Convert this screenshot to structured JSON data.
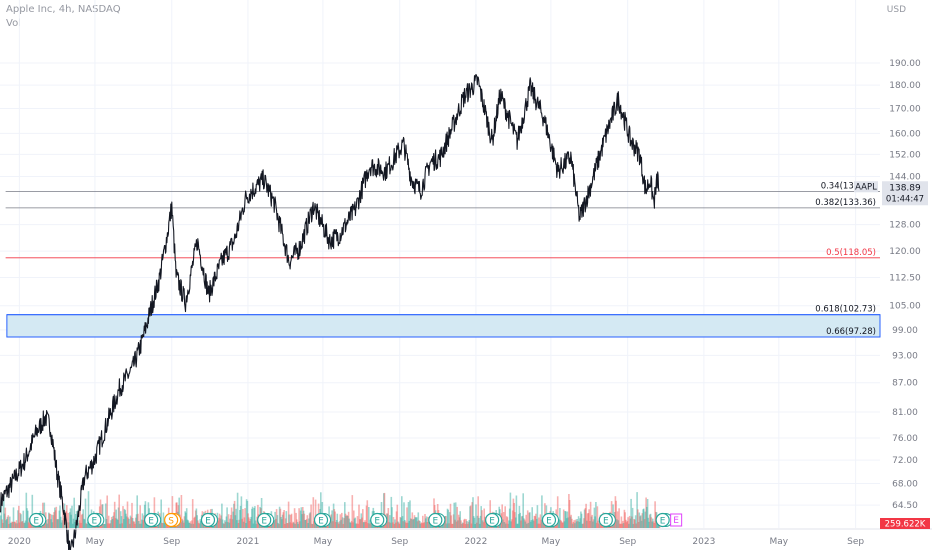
{
  "header": {
    "title": "Apple Inc, 4h, NASDAQ",
    "indicator": "Vol",
    "currency": "USD"
  },
  "colors": {
    "price": "#131722",
    "grid": "#f0f3fa",
    "fib_gray": "#787b86",
    "fib_red": "#f23645",
    "fib_blue": "#2962ff",
    "zone_fill": "#d4e9f3",
    "vol_up": "#26a69a",
    "vol_down": "#ef5350",
    "earnings": "#26a69a",
    "split": "#ff9800",
    "earnings_future": "#e040fb",
    "last_price_bg": "#e0e3eb",
    "volume_label_bg": "#f23645"
  },
  "chart_data": {
    "type": "line",
    "symbol": "AAPL",
    "interval": "4h",
    "exchange": "NASDAQ",
    "y_scale": "log",
    "ylim": [
      61,
      201
    ],
    "xlim": [
      "2019-12-01",
      "2023-10-10"
    ],
    "x_tick_labels": [
      {
        "date": "2020-01-01",
        "label": "2020"
      },
      {
        "date": "2020-05-01",
        "label": "May"
      },
      {
        "date": "2020-09-01",
        "label": "Sep"
      },
      {
        "date": "2021-01-01",
        "label": "2021"
      },
      {
        "date": "2021-05-01",
        "label": "May"
      },
      {
        "date": "2021-09-01",
        "label": "Sep"
      },
      {
        "date": "2022-01-01",
        "label": "2022"
      },
      {
        "date": "2022-05-01",
        "label": "May"
      },
      {
        "date": "2022-09-01",
        "label": "Sep"
      },
      {
        "date": "2023-01-01",
        "label": "2023"
      },
      {
        "date": "2023-05-01",
        "label": "May"
      },
      {
        "date": "2023-09-01",
        "label": "Sep"
      }
    ],
    "y_tick_labels": [
      "190.00",
      "180.00",
      "170.00",
      "160.00",
      "152.00",
      "144.00",
      "128.00",
      "120.00",
      "112.50",
      "105.00",
      "99.00",
      "93.00",
      "87.00",
      "81.00",
      "76.00",
      "72.00",
      "68.00",
      "64.50"
    ],
    "price_series": {
      "name": "AAPL",
      "points": [
        [
          "2019-12-02",
          65
        ],
        [
          "2019-12-20",
          68
        ],
        [
          "2020-01-10",
          72
        ],
        [
          "2020-01-28",
          77
        ],
        [
          "2020-02-12",
          80
        ],
        [
          "2020-02-20",
          78
        ],
        [
          "2020-03-01",
          70
        ],
        [
          "2020-03-12",
          64
        ],
        [
          "2020-03-23",
          57
        ],
        [
          "2020-04-01",
          61
        ],
        [
          "2020-04-14",
          69
        ],
        [
          "2020-04-30",
          72
        ],
        [
          "2020-05-18",
          78
        ],
        [
          "2020-06-10",
          86
        ],
        [
          "2020-06-30",
          90
        ],
        [
          "2020-07-15",
          96
        ],
        [
          "2020-07-31",
          105
        ],
        [
          "2020-08-12",
          112
        ],
        [
          "2020-08-25",
          125
        ],
        [
          "2020-09-01",
          134
        ],
        [
          "2020-09-08",
          113
        ],
        [
          "2020-09-23",
          106
        ],
        [
          "2020-10-12",
          123
        ],
        [
          "2020-10-30",
          108
        ],
        [
          "2020-11-20",
          117
        ],
        [
          "2020-12-10",
          123
        ],
        [
          "2020-12-29",
          137
        ],
        [
          "2021-01-26",
          143
        ],
        [
          "2021-02-12",
          135
        ],
        [
          "2021-03-08",
          117
        ],
        [
          "2021-03-25",
          121
        ],
        [
          "2021-04-16",
          134
        ],
        [
          "2021-05-12",
          123
        ],
        [
          "2021-05-28",
          125
        ],
        [
          "2021-06-22",
          133
        ],
        [
          "2021-07-15",
          148
        ],
        [
          "2021-08-10",
          146
        ],
        [
          "2021-09-07",
          156
        ],
        [
          "2021-09-20",
          143
        ],
        [
          "2021-10-04",
          139
        ],
        [
          "2021-10-20",
          149
        ],
        [
          "2021-11-05",
          151
        ],
        [
          "2021-11-22",
          161
        ],
        [
          "2021-12-13",
          175
        ],
        [
          "2022-01-04",
          182
        ],
        [
          "2022-01-27",
          157
        ],
        [
          "2022-02-09",
          176
        ],
        [
          "2022-03-08",
          157
        ],
        [
          "2022-03-29",
          179
        ],
        [
          "2022-04-20",
          166
        ],
        [
          "2022-05-12",
          146
        ],
        [
          "2022-06-02",
          151
        ],
        [
          "2022-06-16",
          130
        ],
        [
          "2022-07-01",
          139
        ],
        [
          "2022-07-29",
          160
        ],
        [
          "2022-08-17",
          174
        ],
        [
          "2022-09-06",
          157
        ],
        [
          "2022-09-20",
          152
        ],
        [
          "2022-09-30",
          139
        ],
        [
          "2022-10-07",
          143
        ],
        [
          "2022-10-13",
          135
        ],
        [
          "2022-10-19",
          144
        ],
        [
          "2022-10-21",
          138.89
        ]
      ]
    },
    "last_price": {
      "symbol": "AAPL",
      "value": "138.89",
      "countdown": "01:44:47"
    },
    "volume_label": "259.622K",
    "fib_levels": [
      {
        "label": "0.34(138.81)",
        "value": 138.81,
        "color": "#787b86"
      },
      {
        "label": "0.382(133.36)",
        "value": 133.36,
        "color": "#787b86"
      },
      {
        "label": "0.5(118.05)",
        "value": 118.05,
        "color": "#f23645"
      },
      {
        "label": "0.618(102.73)",
        "value": 102.73,
        "color": "#2962ff"
      },
      {
        "label": "0.66(97.28)",
        "value": 97.28,
        "color": "#2962ff"
      }
    ],
    "zone": {
      "from": 97.28,
      "to": 102.73
    },
    "event_markers": [
      {
        "date": "2020-01-28",
        "label": "E"
      },
      {
        "date": "2020-04-30",
        "label": "E"
      },
      {
        "date": "2020-07-30",
        "label": "E"
      },
      {
        "date": "2020-08-31",
        "label": "S"
      },
      {
        "date": "2020-10-29",
        "label": "E"
      },
      {
        "date": "2021-01-27",
        "label": "E"
      },
      {
        "date": "2021-04-28",
        "label": "E"
      },
      {
        "date": "2021-07-27",
        "label": "E"
      },
      {
        "date": "2021-10-28",
        "label": "E"
      },
      {
        "date": "2022-01-27",
        "label": "E"
      },
      {
        "date": "2022-04-28",
        "label": "E"
      },
      {
        "date": "2022-07-28",
        "label": "E"
      },
      {
        "date": "2022-10-27",
        "label": "E"
      }
    ]
  }
}
